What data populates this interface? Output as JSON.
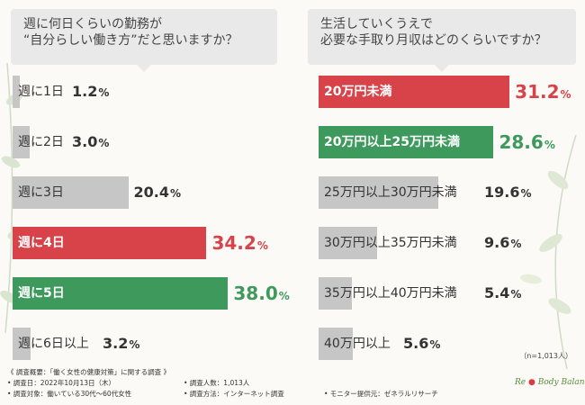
{
  "chart_data": [
    {
      "type": "bar",
      "orientation": "horizontal",
      "title": "週に何日くらいの勤務が\n“自分らしい働き方”だと思いますか？",
      "unit": "%",
      "categories": [
        "週に1日",
        "週に2日",
        "週に3日",
        "週に4日",
        "週に5日",
        "週に6日以上"
      ],
      "values": [
        1.2,
        3.0,
        20.4,
        34.2,
        38.0,
        3.2
      ],
      "value_labels": [
        "1.2",
        "3.0",
        "20.4",
        "34.2",
        "38.0",
        "3.2"
      ],
      "highlight": [
        "none",
        "none",
        "none",
        "red",
        "green",
        "none"
      ]
    },
    {
      "type": "bar",
      "orientation": "horizontal",
      "title": "生活していくうえで\n必要な手取り月収はどのくらいですか？",
      "unit": "%",
      "categories": [
        "20万円未満",
        "20万円以上25万円未満",
        "25万円以上30万円未満",
        "30万円以上35万円未満",
        "35万円以上40万円未満",
        "40万円以上"
      ],
      "values": [
        31.2,
        28.6,
        19.6,
        9.6,
        5.4,
        5.6
      ],
      "value_labels": [
        "31.2",
        "28.6",
        "19.6",
        "9.6",
        "5.4",
        "5.6"
      ],
      "highlight": [
        "red",
        "green",
        "none",
        "none",
        "none",
        "none"
      ]
    }
  ],
  "colors": {
    "red": "#d84349",
    "green": "#3d9a5c",
    "grey": "#c6c6c6",
    "grey_text": "#333333"
  },
  "sample_note": "（n=1,013人）",
  "footer": {
    "overview": "《 調査概要：「働く女性の健康対策」に関する調査 》",
    "date": "• 調査日：2022年10月13日（木）",
    "people": "• 調査人数：1,013人",
    "target": "• 調査対象：働いている30代～60代女性",
    "method": "• 調査方法：インターネット調査",
    "provider": "• モニター提供元：ゼネラルリサーチ"
  },
  "logo": {
    "re": "Re",
    "body": "Body",
    "balance": "Balance"
  }
}
